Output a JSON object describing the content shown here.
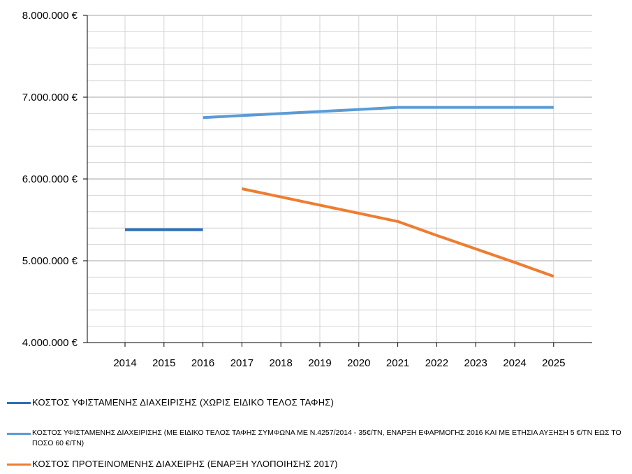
{
  "chart_data": {
    "type": "line",
    "x": [
      2014,
      2015,
      2016,
      2017,
      2018,
      2019,
      2020,
      2021,
      2022,
      2023,
      2024,
      2025
    ],
    "x_tick_labels": [
      "2014",
      "2015",
      "2016",
      "2017",
      "2018",
      "2019",
      "2020",
      "2021",
      "2022",
      "2023",
      "2024",
      "2025"
    ],
    "ylim": [
      4000000,
      8000000
    ],
    "y_tick_values": [
      4000000,
      5000000,
      6000000,
      7000000,
      8000000
    ],
    "y_tick_labels": [
      "4.000.000 €",
      "5.000.000 €",
      "6.000.000 €",
      "7.000.000 €",
      "8.000.000 €"
    ],
    "y_minor_step": 200000,
    "grid": true,
    "legend_placement": "bottom",
    "series": [
      {
        "name": "ΚΟΣΤΟΣ ΥΦΙΣΤΑΜΕΝΗΣ ΔΙΑΧΕΙΡΙΣΗΣ (ΧΩΡΙΣ ΕΙΔΙΚΟ ΤΕΛΟΣ ΤΑΦΗΣ)",
        "color": "#2e6fb7",
        "x": [
          2014,
          2015,
          2016
        ],
        "y": [
          5380000,
          5380000,
          5380000
        ]
      },
      {
        "name": "ΚΟΣΤΟΣ ΥΦΙΣΤΑΜΕΝΗΣ ΔΙΑΧΕΙΡΙΣΗΣ (ΜΕ ΕΙΔΙΚΟ ΤΕΛΟΣ ΤΑΦΗΣ ΣΥΜΦΩΝΑ ΜΕ Ν.4257/2014 -  35€/ΤΝ, ΕΝΑΡΞΗ ΕΦΑΡΜΟΓΗΣ 2016 ΚΑΙ ΜΕ ΕΤΗΣΙΑ ΑΥΞΗΣΗ 5 €/ΤΝ ΕΩΣ ΤΟ ΠΟΣΟ 60 €/ΤΝ)",
        "color": "#5b9bd5",
        "x": [
          2016,
          2017,
          2018,
          2019,
          2020,
          2021,
          2022,
          2023,
          2024,
          2025
        ],
        "y": [
          6750000,
          6775000,
          6800000,
          6825000,
          6850000,
          6875000,
          6875000,
          6875000,
          6875000,
          6875000
        ]
      },
      {
        "name": "ΚΟΣΤΟΣ ΠΡΟΤΕΙΝΟΜΕΝΗΣ ΔΙΑΧΕΙΡΗΣ (ΕΝΑΡΞΗ ΥΛΟΠΟΙΗΣΗΣ 2017)",
        "color": "#ed7d31",
        "x": [
          2017,
          2018,
          2019,
          2020,
          2021,
          2022,
          2023,
          2024,
          2025
        ],
        "y": [
          5880000,
          5780000,
          5680000,
          5580000,
          5480000,
          5310000,
          5145000,
          4980000,
          4810000
        ]
      }
    ]
  }
}
